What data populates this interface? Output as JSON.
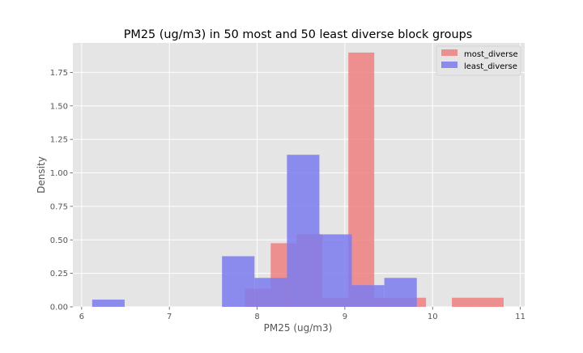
{
  "chart_data": {
    "type": "histogram",
    "title": "PM25 (ug/m3) in 50 most and 50 least diverse block groups",
    "xlabel": "PM25 (ug/m3)",
    "ylabel": "Density",
    "xlim": [
      5.9,
      11.05
    ],
    "ylim": [
      0,
      1.97
    ],
    "xticks": [
      6,
      7,
      8,
      9,
      10,
      11
    ],
    "xtick_labels": [
      "6",
      "7",
      "8",
      "9",
      "10",
      "11"
    ],
    "yticks": [
      0.0,
      0.25,
      0.5,
      0.75,
      1.0,
      1.25,
      1.5,
      1.75
    ],
    "ytick_labels": [
      "0.00",
      "0.25",
      "0.50",
      "0.75",
      "1.00",
      "1.25",
      "1.50",
      "1.75"
    ],
    "grid": true,
    "legend_position": "top-right",
    "series": [
      {
        "name": "most_diverse",
        "color": "#f08080",
        "bin_edges": [
          7.86,
          8.155,
          8.45,
          8.745,
          9.04,
          9.335,
          9.63,
          9.925,
          10.22,
          10.515,
          10.81
        ],
        "values": [
          0.136,
          0.475,
          0.542,
          0.068,
          1.898,
          0.068,
          0.068,
          0.0,
          0.068,
          0.068
        ]
      },
      {
        "name": "least_diverse",
        "color": "#7b7bf0",
        "bin_edges": [
          6.12,
          6.49,
          6.86,
          7.23,
          7.6,
          7.97,
          8.34,
          8.71,
          9.08,
          9.45,
          9.82
        ],
        "values": [
          0.054,
          0.0,
          0.0,
          0.0,
          0.378,
          0.216,
          1.135,
          0.541,
          0.162,
          0.216
        ]
      }
    ]
  }
}
